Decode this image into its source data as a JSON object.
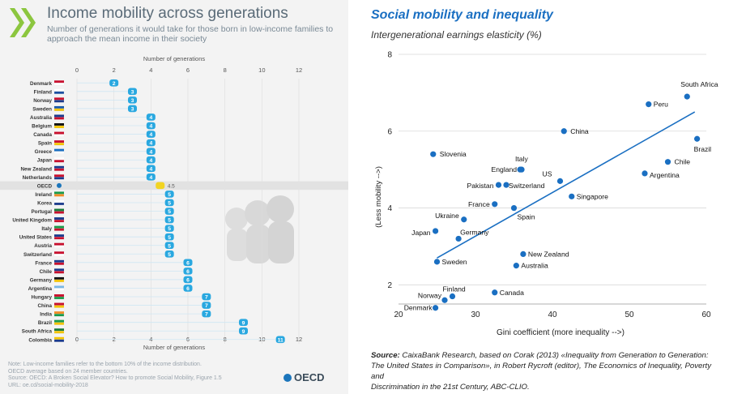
{
  "left": {
    "title": "Income mobility across generations",
    "subtitle": "Number of generations it would take for those born in low-income families to approach the mean income in their society",
    "note_lines": [
      "Note: Low-income families refer to the bottom 10% of the income distribution.",
      "OECD average based on 24 member countries.",
      "Source: OECD: A Broken Social Elevator? How to promote Social Mobility, Figure 1.5",
      "URL: oe.cd/social-mobility-2018"
    ],
    "logo_text": "OECD",
    "logo_icon": "oecd-logo-icon",
    "chevrons_icon": "chevrons-icon",
    "accent_color": "#8cc63f",
    "bar_color": "#29a8e0",
    "highlight_color": "#f2d422"
  },
  "right": {
    "title": "Social mobility and inequality",
    "subtitle": "Intergenerational earnings elasticity (%)",
    "source_label": "Source:",
    "source_lines": [
      "CaixaBank Research, based on Corak (2013) «Inequality from Generation to Generation:",
      "The United States in Comparison», in Robert Rycroft (editor), The Economics of Inequality, Poverty and",
      "Discrimination in the 21st Century, ABC-CLIO."
    ],
    "accent_color": "#1a6fc2"
  },
  "chart_data": [
    {
      "type": "bar",
      "xlabel": "Number of generations",
      "xticks": [
        0,
        2,
        4,
        6,
        8,
        10,
        12
      ],
      "xlim": [
        0,
        12
      ],
      "categories": [
        "Denmark",
        "Finland",
        "Norway",
        "Sweden",
        "Australia",
        "Belgium",
        "Canada",
        "Spain",
        "Greece",
        "Japan",
        "New Zealand",
        "Netherlands",
        "OECD",
        "Ireland",
        "Korea",
        "Portugal",
        "United Kingdom",
        "Italy",
        "United States",
        "Austria",
        "Switzerland",
        "France",
        "Chile",
        "Germany",
        "Argentina",
        "Hungary",
        "China",
        "India",
        "Brazil",
        "South Africa",
        "Colombia"
      ],
      "values": [
        2,
        3,
        3,
        3,
        4,
        4,
        4,
        4,
        4,
        4,
        4,
        4,
        4.5,
        5,
        5,
        5,
        5,
        5,
        5,
        5,
        5,
        6,
        6,
        6,
        6,
        7,
        7,
        7,
        9,
        9,
        11
      ],
      "value_labels": [
        "2",
        "3",
        "3",
        "3",
        "4",
        "4",
        "4",
        "4",
        "4",
        "4",
        "4",
        "4",
        "4.5",
        "5",
        "5",
        "5",
        "5",
        "5",
        "5",
        "5",
        "5",
        "6",
        "6",
        "6",
        "6",
        "7",
        "7",
        "7",
        "9",
        "9",
        "11"
      ],
      "highlight": "OECD"
    },
    {
      "type": "scatter",
      "xlabel": "Gini coefficient (more inequality -->)",
      "ylabel": "(Less mobility -->)",
      "xlim": [
        20,
        60
      ],
      "ylim": [
        1.5,
        8
      ],
      "xticks": [
        20,
        30,
        40,
        50,
        60
      ],
      "yticks": [
        2,
        4,
        6,
        8
      ],
      "grid": true,
      "trend_line": {
        "x": [
          25,
          58.5
        ],
        "y": [
          2.7,
          6.5
        ]
      },
      "points": [
        {
          "label": "South Africa",
          "x": 57.5,
          "y": 6.9
        },
        {
          "label": "Peru",
          "x": 52.5,
          "y": 6.7
        },
        {
          "label": "China",
          "x": 41.5,
          "y": 6.0
        },
        {
          "label": "Brazil",
          "x": 58.8,
          "y": 5.8
        },
        {
          "label": "Chile",
          "x": 55.0,
          "y": 5.2
        },
        {
          "label": "Argentina",
          "x": 52.0,
          "y": 4.9
        },
        {
          "label": "Slovenia",
          "x": 24.5,
          "y": 5.4
        },
        {
          "label": "Italy",
          "x": 36.0,
          "y": 5.0
        },
        {
          "label": "England",
          "x": 35.8,
          "y": 5.0
        },
        {
          "label": "US",
          "x": 41.0,
          "y": 4.7
        },
        {
          "label": "Pakistan",
          "x": 33.0,
          "y": 4.6
        },
        {
          "label": "Switzerland",
          "x": 34.0,
          "y": 4.6
        },
        {
          "label": "Singapore",
          "x": 42.5,
          "y": 4.3
        },
        {
          "label": "France",
          "x": 32.5,
          "y": 4.1
        },
        {
          "label": "Spain",
          "x": 35.0,
          "y": 4.0
        },
        {
          "label": "Ukraine",
          "x": 28.5,
          "y": 3.7
        },
        {
          "label": "Japan",
          "x": 24.8,
          "y": 3.4
        },
        {
          "label": "Germany",
          "x": 27.8,
          "y": 3.2
        },
        {
          "label": "Sweden",
          "x": 25.0,
          "y": 2.6
        },
        {
          "label": "New Zealand",
          "x": 36.2,
          "y": 2.8
        },
        {
          "label": "Australia",
          "x": 35.3,
          "y": 2.5
        },
        {
          "label": "Finland",
          "x": 27.0,
          "y": 1.7
        },
        {
          "label": "Canada",
          "x": 32.5,
          "y": 1.8
        },
        {
          "label": "Norway",
          "x": 26.0,
          "y": 1.6
        },
        {
          "label": "Denmark",
          "x": 24.8,
          "y": 1.4
        }
      ]
    }
  ]
}
